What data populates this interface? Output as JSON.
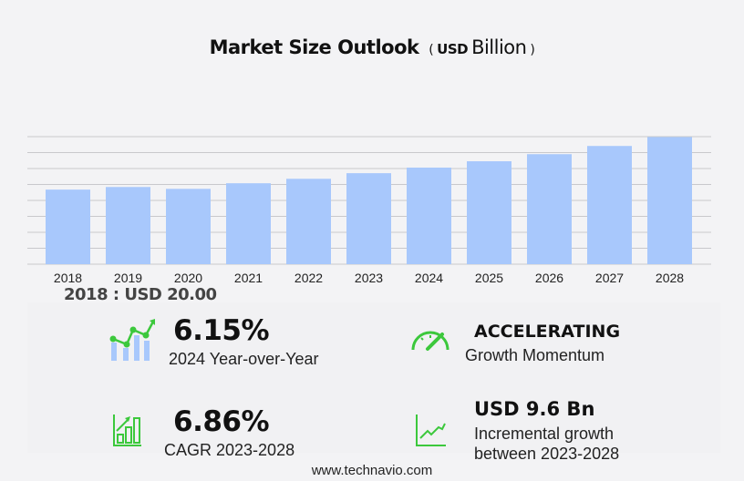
{
  "title": {
    "main": "Market Size Outlook",
    "unit_prefix": "USD",
    "unit": "Billion"
  },
  "chart_data": {
    "type": "bar",
    "title": "Market Size Outlook (USD Billion)",
    "categories": [
      "2018",
      "2019",
      "2020",
      "2021",
      "2022",
      "2023",
      "2024",
      "2025",
      "2026",
      "2027",
      "2028"
    ],
    "values": [
      20.0,
      20.7,
      20.2,
      21.7,
      22.9,
      24.4,
      25.9,
      27.6,
      29.5,
      31.7,
      34.1
    ],
    "ylim": [
      0,
      34.2
    ],
    "grid": true,
    "bar_color": "#a8c8fc",
    "grid_color": "#c8c8cc"
  },
  "base_label": "2018 : USD  20.00",
  "kpis": {
    "yoy": {
      "value": "6.15%",
      "label": "2024 Year-over-Year",
      "icon": "growth-chart-icon"
    },
    "momentum": {
      "value": "ACCELERATING",
      "label": "Growth Momentum",
      "icon": "speedometer-icon"
    },
    "cagr": {
      "value": "6.86%",
      "label": "CAGR 2023-2028",
      "icon": "bar-growth-icon"
    },
    "incremental": {
      "value": "USD 9.6 Bn",
      "label1": "Incremental growth",
      "label2": "between 2023-2028",
      "icon": "line-growth-icon"
    }
  },
  "accent_color": "#3cc83c",
  "footer": "www.technavio.com"
}
